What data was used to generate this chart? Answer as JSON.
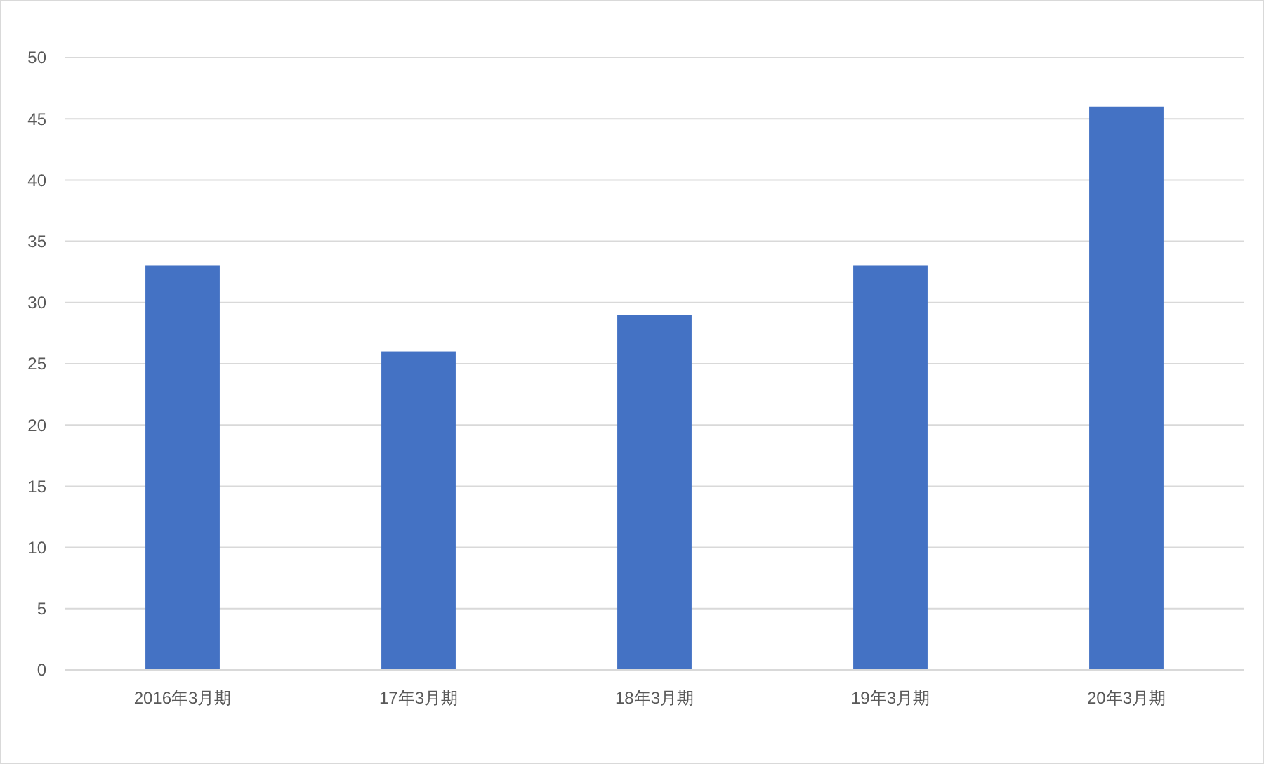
{
  "chart_data": {
    "type": "bar",
    "categories": [
      "2016年3月期",
      "17年3月期",
      "18年3月期",
      "19年3月期",
      "20年3月期"
    ],
    "values": [
      33,
      26,
      29,
      33,
      46
    ],
    "color": "#4472c4",
    "ylim": [
      0,
      50
    ],
    "yticks": [
      0,
      5,
      10,
      15,
      20,
      25,
      30,
      35,
      40,
      45,
      50
    ],
    "grid": "y"
  }
}
